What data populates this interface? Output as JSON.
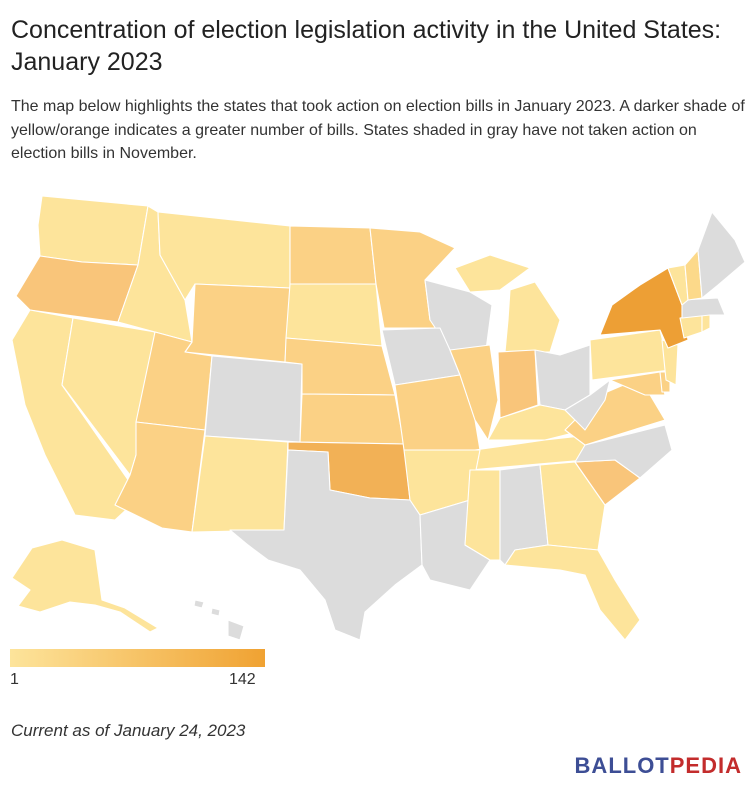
{
  "title": "Concentration of election legislation activity in the United States: January 2023",
  "description": "The map below highlights the states that took action on election bills in January 2023. A darker shade of yellow/orange indicates a greater number of bills. States shaded in gray have not taken action on election bills in November.",
  "legend": {
    "min": "1",
    "max": "142",
    "color_min": "#fde49b",
    "color_max": "#f0a232"
  },
  "footnote": "Current as of January 24, 2023",
  "logo": {
    "part1": "BALLOT",
    "part2": "PEDIA"
  },
  "colors": {
    "no_action": "#dcdcdc",
    "light": "#fde49b",
    "mid_light": "#fcd98a",
    "mid": "#fbd185",
    "mid_dark": "#f9c57a",
    "dark": "#f2b156",
    "darkest": "#ed9f35"
  }
}
